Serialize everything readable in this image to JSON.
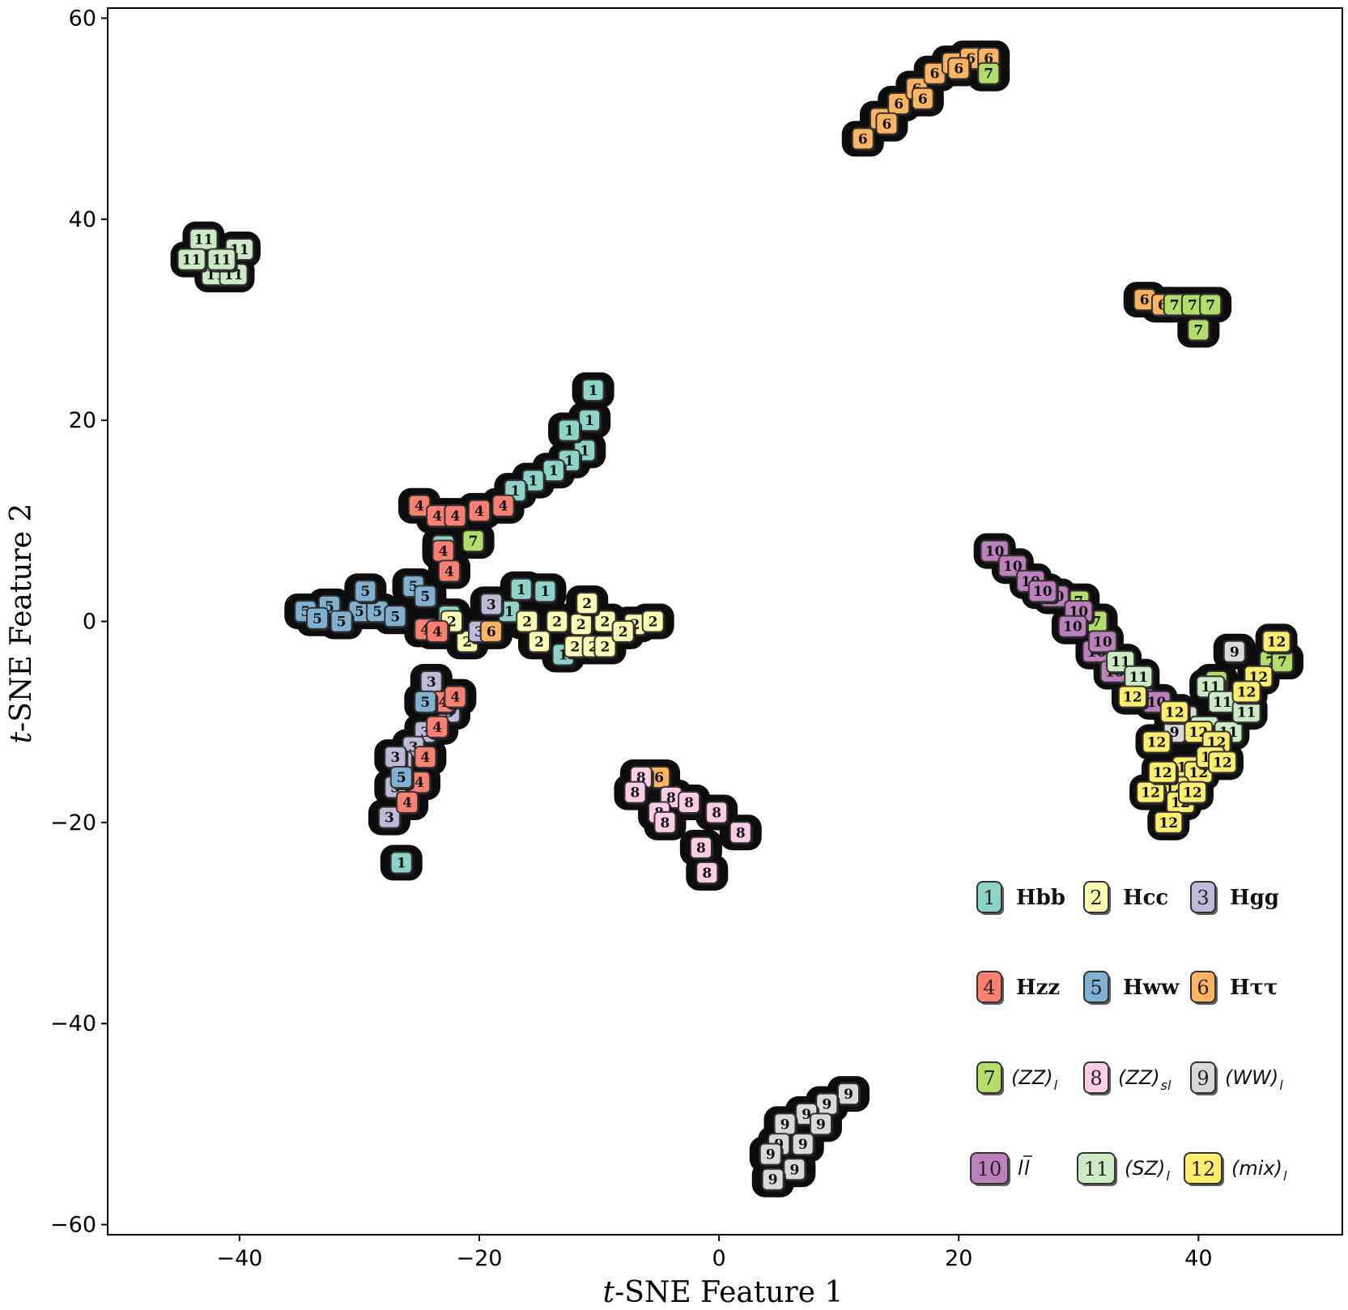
{
  "chart_data": {
    "type": "scatter",
    "xlabel_italic": "t",
    "xlabel_rest": "-SNE Feature 1",
    "ylabel_italic": "t",
    "ylabel_rest": "-SNE Feature 2",
    "xlim": [
      -51,
      52
    ],
    "ylim": [
      -61,
      61
    ],
    "x_ticks": [
      -40,
      -20,
      0,
      20,
      40
    ],
    "y_ticks": [
      -60,
      -40,
      -20,
      0,
      20,
      40,
      60
    ],
    "x_tick_labels": [
      "−40",
      "−20",
      "0",
      "20",
      "40"
    ],
    "y_tick_labels": [
      "−60",
      "−40",
      "−20",
      "0",
      "20",
      "40",
      "60"
    ],
    "legend_position": "lower-right",
    "series": [
      {
        "id": "1",
        "label": "Hbb",
        "style": "bold",
        "color": "#8dd3c7",
        "points": [
          [
            -10.5,
            23
          ],
          [
            -10.8,
            20
          ],
          [
            -11.2,
            17
          ],
          [
            -12.5,
            16
          ],
          [
            -13.8,
            15
          ],
          [
            -15.5,
            14
          ],
          [
            -17,
            13
          ],
          [
            -12.5,
            19
          ],
          [
            -16.5,
            3.2
          ],
          [
            -14.5,
            3
          ],
          [
            -17.5,
            1
          ],
          [
            -13,
            -3.3
          ],
          [
            -22.5,
            0.5
          ],
          [
            -23,
            7.5
          ],
          [
            -26.5,
            -24
          ]
        ]
      },
      {
        "id": "2",
        "label": "Hcc",
        "style": "bold",
        "color": "#ffffb3",
        "points": [
          [
            -16,
            0
          ],
          [
            -13.5,
            0
          ],
          [
            -11.5,
            -0.3
          ],
          [
            -9.5,
            0
          ],
          [
            -7,
            -0.3
          ],
          [
            -5.5,
            0
          ],
          [
            -15,
            -2
          ],
          [
            -12,
            -2.5
          ],
          [
            -10.5,
            -2.5
          ],
          [
            -11,
            1.8
          ],
          [
            -21,
            -2
          ],
          [
            -22.3,
            0
          ],
          [
            -9.5,
            -2.5
          ],
          [
            -8,
            -1
          ]
        ]
      },
      {
        "id": "3",
        "label": "Hgg",
        "style": "bold",
        "color": "#bebada",
        "points": [
          [
            -19,
            1.7
          ],
          [
            -20,
            -1
          ],
          [
            -24.5,
            -11
          ],
          [
            -25.5,
            -12.5
          ],
          [
            -26.5,
            -14
          ],
          [
            -27,
            -16.5
          ],
          [
            -27.5,
            -19.5
          ],
          [
            -24,
            -6
          ],
          [
            -22.5,
            -9
          ],
          [
            -27,
            -13.5
          ]
        ]
      },
      {
        "id": "4",
        "label": "Hzz",
        "style": "plain",
        "color": "#fb8072",
        "points": [
          [
            -25,
            11.5
          ],
          [
            -23.5,
            10.5
          ],
          [
            -22,
            10.5
          ],
          [
            -20,
            11
          ],
          [
            -18,
            11.5
          ],
          [
            -23,
            7
          ],
          [
            -22.5,
            5
          ],
          [
            -24.5,
            -0.8
          ],
          [
            -23.5,
            -1
          ],
          [
            -23,
            -8
          ],
          [
            -23.5,
            -10.5
          ],
          [
            -24.5,
            -13.5
          ],
          [
            -25,
            -16
          ],
          [
            -26,
            -18
          ],
          [
            -22,
            -7.5
          ]
        ]
      },
      {
        "id": "5",
        "label": "Hww",
        "style": "bold",
        "color": "#80b1d3",
        "points": [
          [
            -34.5,
            1
          ],
          [
            -32.5,
            1.5
          ],
          [
            -30,
            1
          ],
          [
            -28.5,
            1
          ],
          [
            -27,
            0.5
          ],
          [
            -29.5,
            3
          ],
          [
            -25.5,
            3.5
          ],
          [
            -24.5,
            2.5
          ],
          [
            -31.5,
            0
          ],
          [
            -26.5,
            -15.5
          ],
          [
            -24.5,
            -8
          ],
          [
            -33.5,
            0.3
          ]
        ]
      },
      {
        "id": "6",
        "label": "Hττ",
        "style": "bold",
        "color": "#fdb462",
        "points": [
          [
            12,
            48
          ],
          [
            13.5,
            50
          ],
          [
            15,
            51.5
          ],
          [
            16.5,
            53
          ],
          [
            18,
            54.5
          ],
          [
            19.5,
            55.5
          ],
          [
            21,
            56
          ],
          [
            22.5,
            56
          ],
          [
            17,
            52
          ],
          [
            20,
            55
          ],
          [
            14,
            49.5
          ],
          [
            35.5,
            32
          ],
          [
            37,
            31.5
          ],
          [
            -5,
            -15.5
          ],
          [
            -19,
            -1
          ]
        ]
      },
      {
        "id": "7",
        "label": "(ZZ)",
        "sub": "l",
        "style": "math",
        "color": "#b3de69",
        "points": [
          [
            22.5,
            54.5
          ],
          [
            38,
            31.5
          ],
          [
            39.5,
            31.5
          ],
          [
            41,
            31.5
          ],
          [
            40,
            29
          ],
          [
            31.5,
            0
          ],
          [
            30,
            2
          ],
          [
            46,
            -4
          ],
          [
            47,
            -4
          ],
          [
            -20.5,
            8
          ],
          [
            41.5,
            -6
          ]
        ]
      },
      {
        "id": "8",
        "label": "(ZZ)",
        "sub": "sl",
        "style": "math",
        "color": "#fccde5",
        "points": [
          [
            -6.5,
            -15.5
          ],
          [
            -4,
            -17.5
          ],
          [
            -2.5,
            -18
          ],
          [
            -0.2,
            -19
          ],
          [
            1.8,
            -21
          ],
          [
            -1,
            -25
          ],
          [
            -7,
            -17
          ],
          [
            -5,
            -19
          ],
          [
            -4.5,
            -20
          ],
          [
            -1.5,
            -22.5
          ]
        ]
      },
      {
        "id": "9",
        "label": "(WW)",
        "sub": "l",
        "style": "math",
        "color": "#d9d9d9",
        "points": [
          [
            10.8,
            -47
          ],
          [
            9,
            -48
          ],
          [
            7.3,
            -49
          ],
          [
            5.5,
            -50
          ],
          [
            5,
            -52
          ],
          [
            7,
            -52
          ],
          [
            6.3,
            -54.5
          ],
          [
            4.5,
            -55.5
          ],
          [
            4.3,
            -53
          ],
          [
            8.5,
            -50
          ],
          [
            43,
            -3
          ],
          [
            39,
            -9.5
          ],
          [
            38,
            -11
          ]
        ]
      },
      {
        "id": "10",
        "label": "l",
        "style": "lbar",
        "color": "#bc80bd",
        "points": [
          [
            23,
            7
          ],
          [
            24.5,
            5.5
          ],
          [
            26,
            4
          ],
          [
            28,
            2.5
          ],
          [
            30,
            1
          ],
          [
            29.5,
            -0.5
          ],
          [
            31.5,
            -3
          ],
          [
            33,
            -5
          ],
          [
            35,
            -6.5
          ],
          [
            36.5,
            -8
          ],
          [
            27,
            3
          ],
          [
            32,
            -2
          ]
        ]
      },
      {
        "id": "11",
        "label": "(SZ)",
        "sub": "l",
        "style": "math",
        "color": "#ccebc5",
        "points": [
          [
            -43,
            38
          ],
          [
            -40,
            37
          ],
          [
            -42,
            34.5
          ],
          [
            -40.5,
            34.5
          ],
          [
            -44,
            36
          ],
          [
            -41.5,
            36
          ],
          [
            33.5,
            -4
          ],
          [
            35,
            -5.5
          ],
          [
            41,
            -6.5
          ],
          [
            42,
            -8
          ],
          [
            40.5,
            -10.5
          ],
          [
            42.5,
            -11
          ],
          [
            44,
            -9
          ]
        ]
      },
      {
        "id": "12",
        "label": "(mix)",
        "sub": "l",
        "style": "math",
        "color": "#ffed6f",
        "points": [
          [
            34.5,
            -7.5
          ],
          [
            38,
            -9
          ],
          [
            40,
            -11
          ],
          [
            41.5,
            -12
          ],
          [
            39,
            -14.5
          ],
          [
            40,
            -15
          ],
          [
            38,
            -16.5
          ],
          [
            38.5,
            -18
          ],
          [
            37.5,
            -20
          ],
          [
            45,
            -5.5
          ],
          [
            46.5,
            -2
          ],
          [
            44,
            -7
          ],
          [
            36.5,
            -12
          ],
          [
            41,
            -13.5
          ],
          [
            36,
            -17
          ],
          [
            37,
            -15
          ],
          [
            39.5,
            -17
          ],
          [
            42,
            -14
          ]
        ]
      }
    ]
  }
}
